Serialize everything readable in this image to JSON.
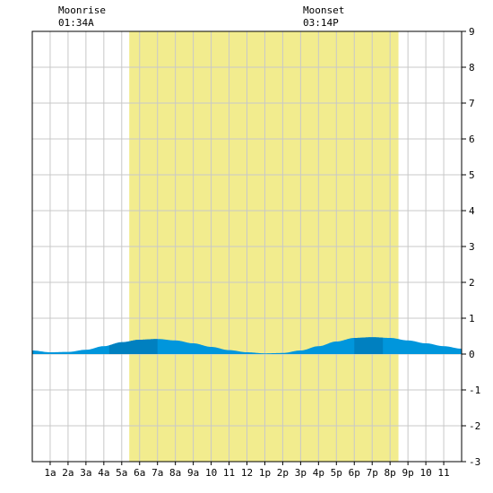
{
  "chart_data": {
    "type": "area",
    "x_range": [
      0,
      24
    ],
    "ylim": [
      -3,
      9
    ],
    "y_ticks": [
      9,
      8,
      7,
      6,
      5,
      4,
      3,
      2,
      1,
      0,
      -1,
      -2,
      -3
    ],
    "x_tick_labels": [
      "1a",
      "2a",
      "3a",
      "4a",
      "5a",
      "6a",
      "7a",
      "8a",
      "9a",
      "10",
      "11",
      "12",
      "1p",
      "2p",
      "3p",
      "4p",
      "5p",
      "6p",
      "7p",
      "8p",
      "9p",
      "10",
      "11"
    ],
    "daylight": {
      "start": 5.42,
      "end": 20.47
    },
    "grid": true,
    "series": [
      {
        "x": [
          0,
          1,
          2,
          3,
          4,
          5,
          6,
          7,
          8,
          9,
          10,
          11,
          12,
          13,
          14,
          15,
          16,
          17,
          18,
          19,
          20,
          21,
          22,
          23,
          24
        ],
        "y": [
          0.1,
          0.05,
          0.06,
          0.12,
          0.22,
          0.33,
          0.4,
          0.42,
          0.38,
          0.3,
          0.2,
          0.11,
          0.05,
          0.02,
          0.03,
          0.1,
          0.22,
          0.35,
          0.45,
          0.47,
          0.45,
          0.38,
          0.3,
          0.22,
          0.15
        ]
      }
    ],
    "highlight_ranges": [
      [
        4.3,
        7.0
      ],
      [
        18.0,
        19.6
      ]
    ],
    "colors": {
      "daylight": "#f2ec8e",
      "tide": "#0096dc",
      "tide_dark": "#0080c0",
      "grid": "#c8c8c8",
      "border": "#000000"
    }
  },
  "moon": {
    "rise_label": "Moonrise",
    "rise_time": "01:34A",
    "set_label": "Moonset",
    "set_time": "03:14P"
  }
}
